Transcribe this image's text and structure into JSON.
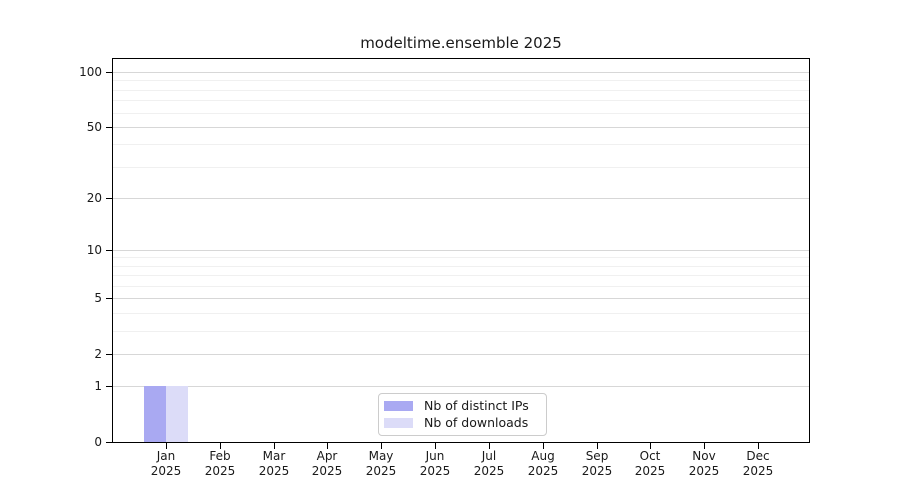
{
  "title": "modeltime.ensemble 2025",
  "colors": {
    "bar_distinct_ips": "#a9a9f2",
    "bar_downloads": "#dcdcf8",
    "axis": "#000000",
    "grid_major": "#d7d7d7",
    "grid_minor": "#f0f0f0",
    "legend_border": "#cccccc",
    "text": "#1a1a1a"
  },
  "chart_data": {
    "type": "bar",
    "title": "modeltime.ensemble 2025",
    "categories": [
      "Jan 2025",
      "Feb 2025",
      "Mar 2025",
      "Apr 2025",
      "May 2025",
      "Jun 2025",
      "Jul 2025",
      "Aug 2025",
      "Sep 2025",
      "Oct 2025",
      "Nov 2025",
      "Dec 2025"
    ],
    "series": [
      {
        "name": "Nb of distinct IPs",
        "color": "#a9a9f2",
        "values": [
          1,
          0,
          0,
          0,
          0,
          0,
          0,
          0,
          0,
          0,
          0,
          0
        ]
      },
      {
        "name": "Nb of downloads",
        "color": "#dcdcf8",
        "values": [
          1,
          0,
          0,
          0,
          0,
          0,
          0,
          0,
          0,
          0,
          0,
          0
        ]
      }
    ],
    "xlabel": "",
    "ylabel": "",
    "y_scale": "log10(1+y)",
    "y_ticks": [
      0,
      1,
      2,
      5,
      10,
      20,
      50,
      100
    ],
    "y_tick_labels": [
      "0",
      "1",
      "2",
      "5",
      "10",
      "20",
      "50",
      "100"
    ],
    "y_minor_gridlines": [
      3,
      4,
      6,
      7,
      8,
      9,
      30,
      40,
      60,
      70,
      80,
      90
    ],
    "ylim": [
      0,
      118
    ],
    "grid": "horizontal",
    "legend_position": "inside-bottom-center"
  }
}
